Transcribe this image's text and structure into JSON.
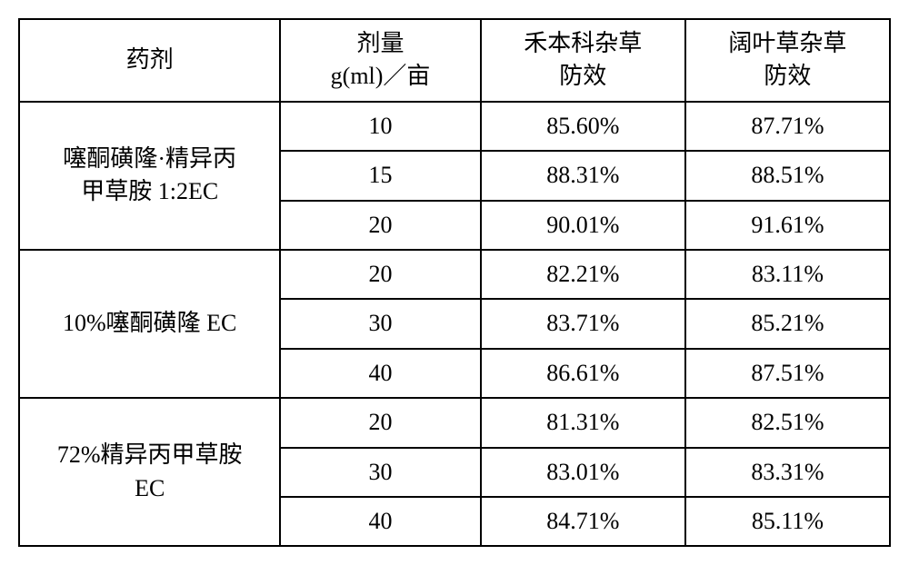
{
  "table": {
    "type": "table",
    "background_color": "#ffffff",
    "border_color": "#000000",
    "text_color": "#000000",
    "font_size_pt": 20,
    "columns": [
      {
        "label_line1": "药剂",
        "label_line2": ""
      },
      {
        "label_line1": "剂量",
        "label_line2": "g(ml)／亩"
      },
      {
        "label_line1": "禾本科杂草",
        "label_line2": "防效"
      },
      {
        "label_line1": "阔叶草杂草",
        "label_line2": "防效"
      }
    ],
    "groups": [
      {
        "agent_line1": "噻酮磺隆·精异丙",
        "agent_line2": "甲草胺 1:2EC",
        "rows": [
          {
            "dose": "10",
            "grass": "85.60%",
            "broadleaf": "87.71%"
          },
          {
            "dose": "15",
            "grass": "88.31%",
            "broadleaf": "88.51%"
          },
          {
            "dose": "20",
            "grass": "90.01%",
            "broadleaf": "91.61%"
          }
        ]
      },
      {
        "agent_line1": "10%噻酮磺隆 EC",
        "agent_line2": "",
        "rows": [
          {
            "dose": "20",
            "grass": "82.21%",
            "broadleaf": "83.11%"
          },
          {
            "dose": "30",
            "grass": "83.71%",
            "broadleaf": "85.21%"
          },
          {
            "dose": "40",
            "grass": "86.61%",
            "broadleaf": "87.51%"
          }
        ]
      },
      {
        "agent_line1": "72%精异丙甲草胺",
        "agent_line2": "EC",
        "rows": [
          {
            "dose": "20",
            "grass": "81.31%",
            "broadleaf": "82.51%"
          },
          {
            "dose": "30",
            "grass": "83.01%",
            "broadleaf": "83.31%"
          },
          {
            "dose": "40",
            "grass": "84.71%",
            "broadleaf": "85.11%"
          }
        ]
      }
    ]
  }
}
